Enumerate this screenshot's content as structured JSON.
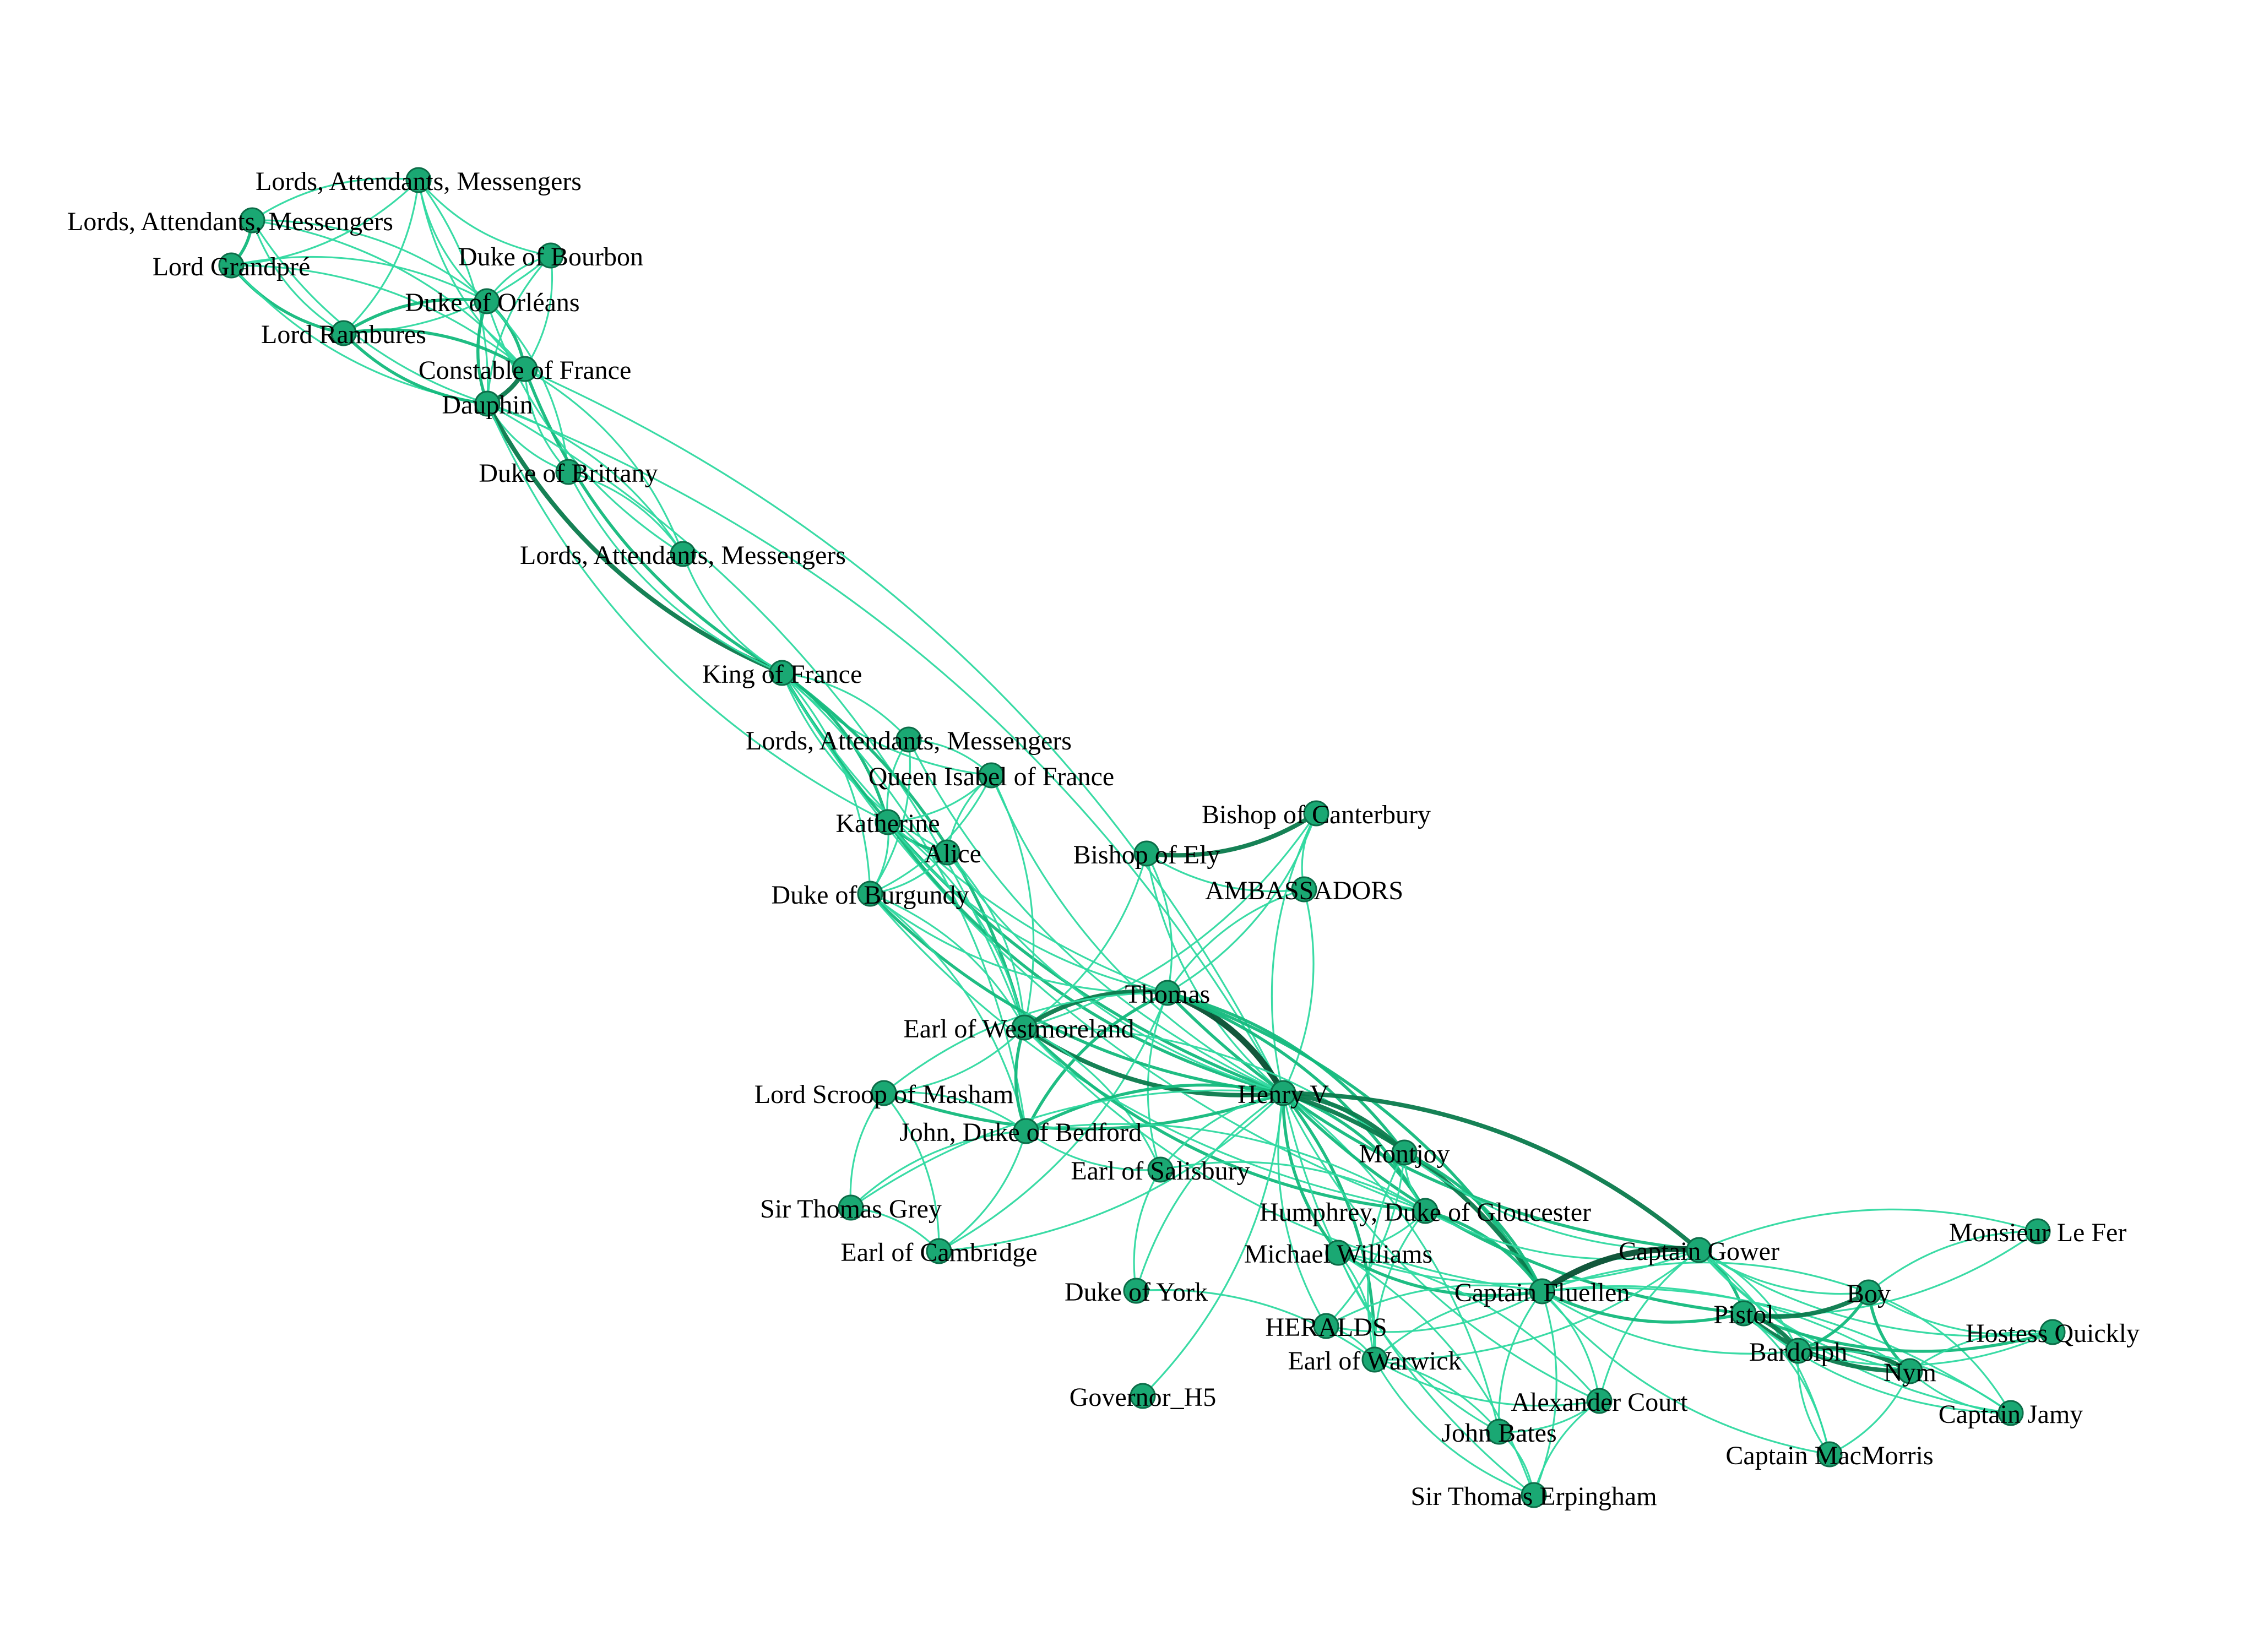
{
  "colors": {
    "edge_light": "#2fd9a0",
    "edge_mid": "#13b97c",
    "edge_dark": "#0a7a4c",
    "edge_darkest": "#064f31",
    "node_fill": "#1aa873",
    "node_stroke": "#0c6d48",
    "label": "#000000"
  },
  "nodes": [
    {
      "id": "n0",
      "label": "Lords, Attendants, Messengers"
    },
    {
      "id": "n1",
      "label": "Lords, Attendants, Messengers"
    },
    {
      "id": "n2",
      "label": "Lord Grandpré"
    },
    {
      "id": "n3",
      "label": "Duke of Bourbon"
    },
    {
      "id": "n4",
      "label": "Duke of Orléans"
    },
    {
      "id": "n5",
      "label": "Lord Rambures"
    },
    {
      "id": "n6",
      "label": "Constable of France"
    },
    {
      "id": "n7",
      "label": "Dauphin"
    },
    {
      "id": "n8",
      "label": "Duke of Brittany"
    },
    {
      "id": "n9",
      "label": "Lords, Attendants, Messengers"
    },
    {
      "id": "n10",
      "label": "King of France"
    },
    {
      "id": "n11",
      "label": "Lords, Attendants,  Messengers"
    },
    {
      "id": "n12",
      "label": "Queen Isabel of France"
    },
    {
      "id": "n13",
      "label": "Katherine"
    },
    {
      "id": "n14",
      "label": "Alice"
    },
    {
      "id": "n15",
      "label": "Duke of Burgundy"
    },
    {
      "id": "n16",
      "label": "Bishop of Canterbury"
    },
    {
      "id": "n17",
      "label": "Bishop of Ely"
    },
    {
      "id": "n18",
      "label": "AMBASSADORS"
    },
    {
      "id": "n19",
      "label": "Thomas"
    },
    {
      "id": "n20",
      "label": "Earl of Westmoreland"
    },
    {
      "id": "n21",
      "label": "Henry V"
    },
    {
      "id": "n22",
      "label": "Lord Scroop of Masham"
    },
    {
      "id": "n23",
      "label": "John, Duke of Bedford"
    },
    {
      "id": "n24",
      "label": "Montjoy"
    },
    {
      "id": "n25",
      "label": "Earl of Salisbury"
    },
    {
      "id": "n26",
      "label": "Humphrey, Duke of Gloucester"
    },
    {
      "id": "n27",
      "label": "Sir Thomas Grey"
    },
    {
      "id": "n28",
      "label": "Earl of Cambridge"
    },
    {
      "id": "n29",
      "label": "Michael Williams"
    },
    {
      "id": "n30",
      "label": "Captain Gower"
    },
    {
      "id": "n31",
      "label": "Monsieur Le Fer"
    },
    {
      "id": "n32",
      "label": "Duke of York"
    },
    {
      "id": "n33",
      "label": "Captain Fluellen"
    },
    {
      "id": "n34",
      "label": "Boy"
    },
    {
      "id": "n35",
      "label": "Pistol"
    },
    {
      "id": "n36",
      "label": "HERALDS"
    },
    {
      "id": "n37",
      "label": "Hostess Quickly"
    },
    {
      "id": "n38",
      "label": "Bardolph"
    },
    {
      "id": "n39",
      "label": "Earl of Warwick"
    },
    {
      "id": "n40",
      "label": "Nym"
    },
    {
      "id": "n41",
      "label": "Governor_H5"
    },
    {
      "id": "n42",
      "label": "Alexander Court"
    },
    {
      "id": "n43",
      "label": "Captain Jamy"
    },
    {
      "id": "n44",
      "label": "John Bates"
    },
    {
      "id": "n45",
      "label": "Captain MacMorris"
    },
    {
      "id": "n46",
      "label": "Sir Thomas Erpingham"
    }
  ],
  "edges": [
    [
      "n0",
      "n1",
      1
    ],
    [
      "n0",
      "n2",
      1
    ],
    [
      "n0",
      "n4",
      1
    ],
    [
      "n0",
      "n5",
      1
    ],
    [
      "n0",
      "n6",
      1
    ],
    [
      "n0",
      "n7",
      1
    ],
    [
      "n0",
      "n3",
      1
    ],
    [
      "n1",
      "n2",
      2
    ],
    [
      "n1",
      "n5",
      1
    ],
    [
      "n1",
      "n6",
      1
    ],
    [
      "n1",
      "n7",
      1
    ],
    [
      "n1",
      "n4",
      1
    ],
    [
      "n2",
      "n5",
      2
    ],
    [
      "n2",
      "n6",
      1
    ],
    [
      "n2",
      "n7",
      1
    ],
    [
      "n2",
      "n4",
      1
    ],
    [
      "n3",
      "n4",
      1
    ],
    [
      "n3",
      "n6",
      1
    ],
    [
      "n3",
      "n7",
      1
    ],
    [
      "n3",
      "n5",
      1
    ],
    [
      "n4",
      "n5",
      2
    ],
    [
      "n4",
      "n6",
      2
    ],
    [
      "n4",
      "n7",
      2
    ],
    [
      "n4",
      "n8",
      1
    ],
    [
      "n4",
      "n9",
      1
    ],
    [
      "n5",
      "n6",
      2
    ],
    [
      "n5",
      "n7",
      2
    ],
    [
      "n6",
      "n7",
      3
    ],
    [
      "n6",
      "n8",
      1
    ],
    [
      "n6",
      "n9",
      1
    ],
    [
      "n6",
      "n10",
      2
    ],
    [
      "n6",
      "n21",
      1
    ],
    [
      "n7",
      "n8",
      1
    ],
    [
      "n7",
      "n9",
      1
    ],
    [
      "n7",
      "n10",
      3
    ],
    [
      "n7",
      "n21",
      1
    ],
    [
      "n7",
      "n13",
      1
    ],
    [
      "n7",
      "n20",
      1
    ],
    [
      "n8",
      "n10",
      1
    ],
    [
      "n8",
      "n9",
      1
    ],
    [
      "n9",
      "n10",
      1
    ],
    [
      "n10",
      "n11",
      1
    ],
    [
      "n10",
      "n12",
      1
    ],
    [
      "n10",
      "n13",
      2
    ],
    [
      "n10",
      "n14",
      1
    ],
    [
      "n10",
      "n15",
      1
    ],
    [
      "n10",
      "n19",
      1
    ],
    [
      "n10",
      "n20",
      2
    ],
    [
      "n10",
      "n21",
      2
    ],
    [
      "n10",
      "n23",
      1
    ],
    [
      "n10",
      "n26",
      1
    ],
    [
      "n11",
      "n12",
      1
    ],
    [
      "n11",
      "n13",
      1
    ],
    [
      "n11",
      "n15",
      1
    ],
    [
      "n11",
      "n21",
      1
    ],
    [
      "n12",
      "n13",
      1
    ],
    [
      "n12",
      "n14",
      1
    ],
    [
      "n12",
      "n15",
      1
    ],
    [
      "n12",
      "n21",
      1
    ],
    [
      "n12",
      "n20",
      1
    ],
    [
      "n13",
      "n14",
      2
    ],
    [
      "n13",
      "n15",
      1
    ],
    [
      "n13",
      "n21",
      2
    ],
    [
      "n13",
      "n20",
      1
    ],
    [
      "n13",
      "n19",
      1
    ],
    [
      "n14",
      "n15",
      1
    ],
    [
      "n14",
      "n21",
      1
    ],
    [
      "n14",
      "n20",
      1
    ],
    [
      "n15",
      "n19",
      1
    ],
    [
      "n15",
      "n20",
      1
    ],
    [
      "n15",
      "n21",
      2
    ],
    [
      "n15",
      "n23",
      1
    ],
    [
      "n15",
      "n26",
      1
    ],
    [
      "n16",
      "n17",
      3
    ],
    [
      "n16",
      "n18",
      1
    ],
    [
      "n16",
      "n19",
      1
    ],
    [
      "n16",
      "n21",
      1
    ],
    [
      "n16",
      "n20",
      1
    ],
    [
      "n17",
      "n18",
      1
    ],
    [
      "n17",
      "n19",
      1
    ],
    [
      "n17",
      "n21",
      1
    ],
    [
      "n17",
      "n20",
      1
    ],
    [
      "n18",
      "n19",
      1
    ],
    [
      "n18",
      "n21",
      1
    ],
    [
      "n19",
      "n20",
      3
    ],
    [
      "n19",
      "n21",
      4
    ],
    [
      "n19",
      "n23",
      2
    ],
    [
      "n19",
      "n24",
      2
    ],
    [
      "n19",
      "n25",
      1
    ],
    [
      "n19",
      "n26",
      2
    ],
    [
      "n19",
      "n30",
      2
    ],
    [
      "n19",
      "n33",
      2
    ],
    [
      "n19",
      "n22",
      1
    ],
    [
      "n19",
      "n28",
      1
    ],
    [
      "n20",
      "n21",
      3
    ],
    [
      "n20",
      "n22",
      1
    ],
    [
      "n20",
      "n23",
      2
    ],
    [
      "n20",
      "n25",
      1
    ],
    [
      "n20",
      "n26",
      2
    ],
    [
      "n20",
      "n24",
      1
    ],
    [
      "n20",
      "n33",
      1
    ],
    [
      "n21",
      "n22",
      2
    ],
    [
      "n21",
      "n23",
      2
    ],
    [
      "n21",
      "n24",
      3
    ],
    [
      "n21",
      "n25",
      1
    ],
    [
      "n21",
      "n26",
      2
    ],
    [
      "n21",
      "n27",
      1
    ],
    [
      "n21",
      "n28",
      1
    ],
    [
      "n21",
      "n29",
      2
    ],
    [
      "n21",
      "n30",
      3
    ],
    [
      "n21",
      "n32",
      1
    ],
    [
      "n21",
      "n33",
      3
    ],
    [
      "n21",
      "n36",
      1
    ],
    [
      "n21",
      "n39",
      2
    ],
    [
      "n21",
      "n42",
      1
    ],
    [
      "n21",
      "n44",
      1
    ],
    [
      "n21",
      "n46",
      1
    ],
    [
      "n21",
      "n41",
      1
    ],
    [
      "n21",
      "n35",
      2
    ],
    [
      "n22",
      "n23",
      1
    ],
    [
      "n22",
      "n27",
      1
    ],
    [
      "n22",
      "n28",
      1
    ],
    [
      "n23",
      "n27",
      1
    ],
    [
      "n23",
      "n28",
      1
    ],
    [
      "n23",
      "n25",
      1
    ],
    [
      "n23",
      "n26",
      1
    ],
    [
      "n24",
      "n26",
      1
    ],
    [
      "n24",
      "n33",
      2
    ],
    [
      "n24",
      "n30",
      1
    ],
    [
      "n24",
      "n36",
      1
    ],
    [
      "n24",
      "n39",
      1
    ],
    [
      "n25",
      "n26",
      1
    ],
    [
      "n25",
      "n32",
      1
    ],
    [
      "n26",
      "n33",
      2
    ],
    [
      "n26",
      "n30",
      1
    ],
    [
      "n26",
      "n29",
      1
    ],
    [
      "n26",
      "n39",
      1
    ],
    [
      "n27",
      "n28",
      1
    ],
    [
      "n29",
      "n33",
      2
    ],
    [
      "n29",
      "n42",
      1
    ],
    [
      "n29",
      "n44",
      1
    ],
    [
      "n29",
      "n46",
      1
    ],
    [
      "n29",
      "n30",
      1
    ],
    [
      "n29",
      "n39",
      1
    ],
    [
      "n30",
      "n33",
      4
    ],
    [
      "n30",
      "n35",
      2
    ],
    [
      "n30",
      "n34",
      1
    ],
    [
      "n30",
      "n38",
      1
    ],
    [
      "n30",
      "n40",
      1
    ],
    [
      "n30",
      "n45",
      1
    ],
    [
      "n30",
      "n43",
      1
    ],
    [
      "n30",
      "n31",
      1
    ],
    [
      "n30",
      "n37",
      1
    ],
    [
      "n30",
      "n39",
      1
    ],
    [
      "n30",
      "n42",
      1
    ],
    [
      "n31",
      "n35",
      1
    ],
    [
      "n31",
      "n34",
      1
    ],
    [
      "n32",
      "n39",
      1
    ],
    [
      "n33",
      "n35",
      2
    ],
    [
      "n33",
      "n34",
      1
    ],
    [
      "n33",
      "n38",
      1
    ],
    [
      "n33",
      "n40",
      1
    ],
    [
      "n33",
      "n45",
      1
    ],
    [
      "n33",
      "n43",
      1
    ],
    [
      "n33",
      "n39",
      1
    ],
    [
      "n33",
      "n42",
      1
    ],
    [
      "n33",
      "n44",
      1
    ],
    [
      "n33",
      "n46",
      1
    ],
    [
      "n33",
      "n36",
      1
    ],
    [
      "n34",
      "n35",
      3
    ],
    [
      "n34",
      "n37",
      1
    ],
    [
      "n34",
      "n38",
      2
    ],
    [
      "n34",
      "n40",
      2
    ],
    [
      "n34",
      "n43",
      1
    ],
    [
      "n35",
      "n37",
      2
    ],
    [
      "n35",
      "n38",
      3
    ],
    [
      "n35",
      "n40",
      3
    ],
    [
      "n35",
      "n45",
      1
    ],
    [
      "n35",
      "n43",
      1
    ],
    [
      "n36",
      "n39",
      1
    ],
    [
      "n36",
      "n33",
      1
    ],
    [
      "n37",
      "n38",
      1
    ],
    [
      "n37",
      "n40",
      1
    ],
    [
      "n38",
      "n40",
      3
    ],
    [
      "n38",
      "n45",
      1
    ],
    [
      "n38",
      "n43",
      1
    ],
    [
      "n39",
      "n42",
      1
    ],
    [
      "n39",
      "n44",
      1
    ],
    [
      "n39",
      "n46",
      1
    ],
    [
      "n40",
      "n45",
      1
    ],
    [
      "n40",
      "n43",
      1
    ],
    [
      "n42",
      "n44",
      1
    ],
    [
      "n42",
      "n46",
      1
    ],
    [
      "n44",
      "n46",
      1
    ]
  ]
}
